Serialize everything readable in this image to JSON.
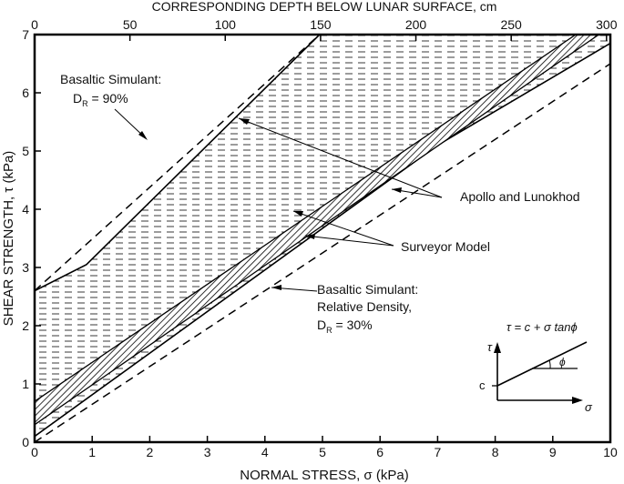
{
  "chart_data": {
    "type": "line",
    "xlabel": "NORMAL STRESS, σ (kPa)",
    "ylabel": "SHEAR STRENGTH, τ (kPa)",
    "top_axis_label": "CORRESPONDING DEPTH BELOW LUNAR SURFACE, cm",
    "xlim": [
      0,
      10
    ],
    "ylim": [
      0,
      7
    ],
    "x_ticks": [
      "0",
      "1",
      "2",
      "3",
      "4",
      "5",
      "6",
      "7",
      "8",
      "9",
      "10"
    ],
    "y_ticks": [
      "0",
      "1",
      "2",
      "3",
      "4",
      "5",
      "6",
      "7"
    ],
    "top_ticks": [
      {
        "depth_cm": 0,
        "label": "0"
      },
      {
        "depth_cm": 50,
        "label": "50"
      },
      {
        "depth_cm": 100,
        "label": "100"
      },
      {
        "depth_cm": 150,
        "label": "150"
      },
      {
        "depth_cm": 200,
        "label": "200"
      },
      {
        "depth_cm": 250,
        "label": "250"
      },
      {
        "depth_cm": 300,
        "label": "300"
      }
    ],
    "top_scale_cm_per_kpa": 30.2,
    "grid": false,
    "lines": [
      {
        "name": "Basaltic Simulant D_R = 90%",
        "style": "dashed",
        "x": [
          0,
          4.95
        ],
        "y": [
          2.6,
          7.0
        ]
      },
      {
        "name": "Basaltic Simulant D_R = 30%",
        "style": "dashed",
        "x": [
          0,
          10
        ],
        "y": [
          0,
          6.5
        ]
      }
    ],
    "bands": [
      {
        "name": "Apollo and Lunokhod",
        "fill": "dashed-horizontal",
        "upper": {
          "x": [
            0,
            0.9,
            4.95,
            10
          ],
          "y": [
            2.6,
            3.05,
            7.0,
            7.0
          ]
        },
        "lower": {
          "x": [
            0,
            7.0,
            10
          ],
          "y": [
            0.1,
            5.1,
            6.85
          ]
        }
      },
      {
        "name": "Surveyor Model",
        "fill": "crosshatch",
        "upper": {
          "x": [
            0,
            9.4
          ],
          "y": [
            0.7,
            7.0
          ]
        },
        "lower": {
          "x": [
            0,
            9.8
          ],
          "y": [
            0.3,
            7.0
          ]
        }
      }
    ],
    "annotations": {
      "sim90_line1": "Basaltic Simulant:",
      "sim90_line2_main": "D",
      "sim90_line2_sub": "R",
      "sim90_line2_rest": " = 90%",
      "apollo": "Apollo and Lunokhod",
      "surveyor": "Surveyor Model",
      "sim30_line1": "Basaltic Simulant:",
      "sim30_line2": "Relative Density,",
      "sim30_line3_main": "D",
      "sim30_line3_sub": "R",
      "sim30_line3_rest": " = 30%"
    },
    "inset": {
      "equation": "τ = c + σ tanϕ",
      "tau_label": "τ",
      "sigma_label": "σ",
      "c_label": "c",
      "phi_label": "ϕ"
    }
  }
}
